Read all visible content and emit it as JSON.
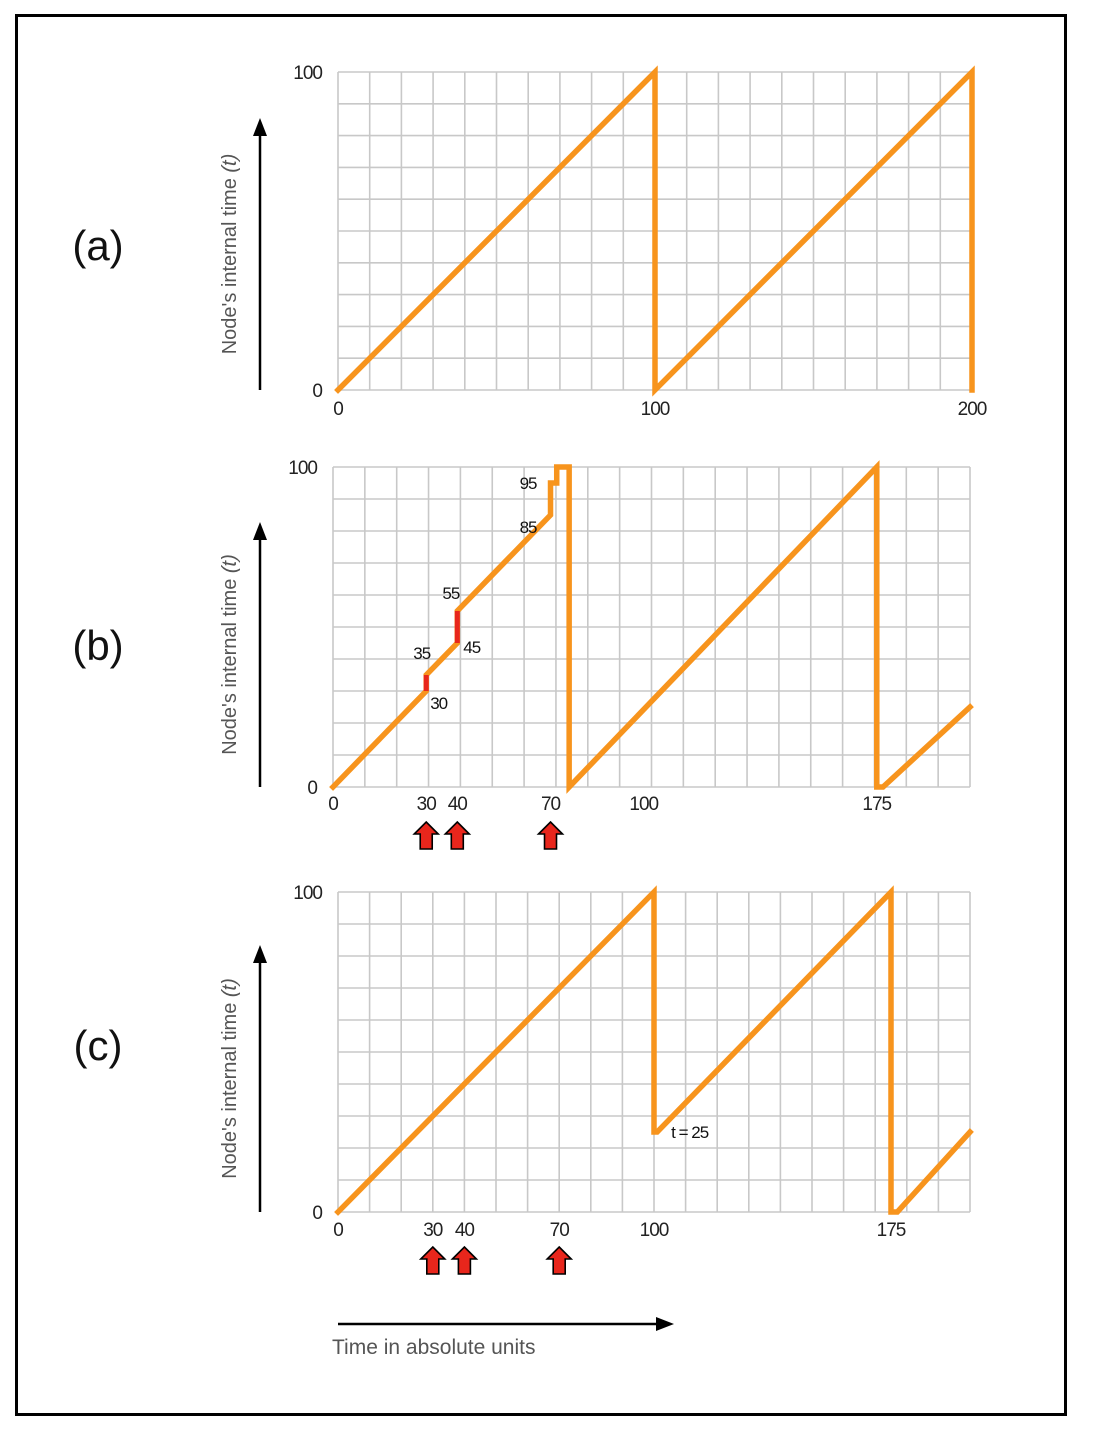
{
  "chart_data": [
    {
      "type": "line",
      "panel_label": "(a)",
      "ylabel": "Node's internal time",
      "ylabel_var": "(t)",
      "ylim": [
        0,
        100
      ],
      "xlim": [
        0,
        200
      ],
      "x_ticks": [
        0,
        100,
        200
      ],
      "y_ticks": [
        0,
        100
      ],
      "grid": true,
      "series": [
        {
          "color": "#f7941d",
          "x": [
            0,
            100,
            100,
            200,
            200
          ],
          "y": [
            0,
            100,
            0,
            100,
            0
          ]
        }
      ],
      "annotations": [],
      "arrows_at": []
    },
    {
      "type": "line",
      "panel_label": "(b)",
      "ylabel": "Node's internal time",
      "ylabel_var": "(t)",
      "ylim": [
        0,
        100
      ],
      "xlim": [
        0,
        205
      ],
      "x_ticks": [
        0,
        30,
        40,
        70,
        100,
        175
      ],
      "y_ticks": [
        0,
        100
      ],
      "grid": true,
      "series": [
        {
          "color": "#f7941d",
          "x": [
            0,
            30,
            30,
            40,
            40,
            70,
            70,
            72,
            72,
            76,
            76,
            175,
            175,
            177,
            205
          ],
          "y": [
            0,
            30,
            35,
            45,
            55,
            85,
            95,
            95,
            100,
            100,
            0,
            100,
            0,
            0,
            25
          ]
        }
      ],
      "jumps": [
        {
          "x": 30,
          "from": 30,
          "to": 35,
          "color": "#e8261c"
        },
        {
          "x": 40,
          "from": 45,
          "to": 55,
          "color": "#e8261c"
        }
      ],
      "annotations": [
        {
          "text": "35",
          "x": 30,
          "y": 35
        },
        {
          "text": "30",
          "x": 30,
          "y": 30
        },
        {
          "text": "55",
          "x": 40,
          "y": 55
        },
        {
          "text": "45",
          "x": 40,
          "y": 45
        },
        {
          "text": "95",
          "x": 70,
          "y": 95
        },
        {
          "text": "85",
          "x": 70,
          "y": 85
        }
      ],
      "arrows_at": [
        30,
        40,
        70
      ]
    },
    {
      "type": "line",
      "panel_label": "(c)",
      "ylabel": "Node's internal time",
      "ylabel_var": "(t)",
      "ylim": [
        0,
        100
      ],
      "xlim": [
        0,
        200
      ],
      "x_ticks": [
        0,
        30,
        40,
        70,
        100,
        175
      ],
      "y_ticks": [
        0,
        100
      ],
      "grid": true,
      "series": [
        {
          "color": "#f7941d",
          "x": [
            0,
            100,
            100,
            101,
            101,
            175,
            175,
            177,
            200
          ],
          "y": [
            0,
            100,
            25,
            25,
            25,
            100,
            0,
            0,
            25
          ]
        }
      ],
      "annotations": [
        {
          "text": "t = 25",
          "x": 101,
          "y": 25
        }
      ],
      "arrows_at": [
        30,
        40,
        70
      ]
    }
  ],
  "xlabel": "Time in absolute units",
  "colors": {
    "line": "#f7941d",
    "jump": "#e8261c",
    "arrow": "#e8261c",
    "grid": "#c8c8c8"
  }
}
